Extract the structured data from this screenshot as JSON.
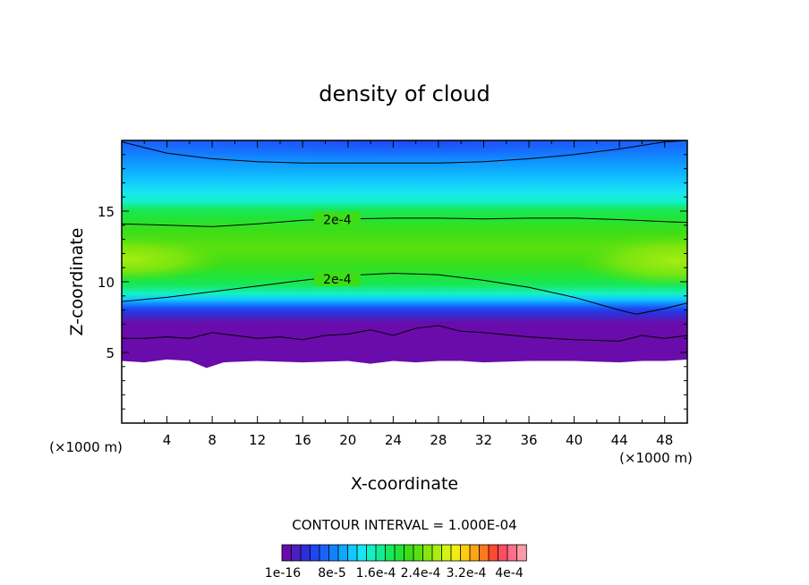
{
  "chart_data": {
    "type": "heatmap",
    "title": "density of cloud",
    "xlabel": "X-coordinate",
    "ylabel": "Z-coordinate",
    "x_unit_left": "(×1000 m)",
    "x_unit_right": "(×1000 m)",
    "xlim": [
      0,
      50
    ],
    "ylim": [
      0,
      20
    ],
    "x_ticks": [
      "4",
      "8",
      "12",
      "16",
      "20",
      "24",
      "28",
      "32",
      "36",
      "40",
      "44",
      "48"
    ],
    "y_ticks": [
      "5",
      "10",
      "15"
    ],
    "contour_interval_text": "CONTOUR INTERVAL = 1.000E-04",
    "contour_labels": [
      {
        "text": "2e-4",
        "x": 17,
        "z": 14.4
      },
      {
        "text": "2e-4",
        "x": 17,
        "z": 10.2
      }
    ],
    "contours_2e-4": [
      {
        "x": [
          0,
          4,
          8,
          12,
          16,
          20,
          24,
          28,
          32,
          36,
          40,
          44,
          48,
          50
        ],
        "z": [
          14.1,
          14.0,
          13.9,
          14.1,
          14.35,
          14.45,
          14.5,
          14.5,
          14.45,
          14.5,
          14.5,
          14.4,
          14.25,
          14.2
        ]
      },
      {
        "x": [
          0,
          4,
          8,
          12,
          16,
          20,
          24,
          28,
          32,
          36,
          40,
          44,
          45.5,
          48,
          50
        ],
        "z": [
          8.6,
          8.9,
          9.3,
          9.7,
          10.1,
          10.45,
          10.6,
          10.5,
          10.1,
          9.6,
          8.9,
          8.0,
          7.7,
          8.1,
          8.5
        ]
      }
    ],
    "contour_top": {
      "x": [
        0,
        4,
        8,
        12,
        16,
        20,
        24,
        28,
        32,
        36,
        40,
        44,
        48,
        50
      ],
      "z": [
        19.9,
        19.1,
        18.7,
        18.5,
        18.4,
        18.4,
        18.4,
        18.4,
        18.5,
        18.7,
        19.0,
        19.4,
        19.9,
        20.0
      ]
    },
    "cloud_base": {
      "x": [
        0,
        2,
        4,
        6,
        7.5,
        9,
        12,
        16,
        20,
        22,
        24,
        26,
        28,
        30,
        32,
        36,
        40,
        44,
        46,
        48,
        50
      ],
      "z": [
        4.4,
        4.3,
        4.5,
        4.4,
        3.9,
        4.3,
        4.4,
        4.3,
        4.4,
        4.2,
        4.4,
        4.3,
        4.4,
        4.4,
        4.3,
        4.4,
        4.4,
        4.3,
        4.4,
        4.4,
        4.5
      ]
    },
    "cloud_edge": {
      "x": [
        0,
        2,
        4,
        6,
        8,
        10,
        12,
        14,
        16,
        18,
        20,
        22,
        24,
        26,
        28,
        30,
        32,
        36,
        40,
        44,
        46,
        48,
        50
      ],
      "z": [
        6.0,
        6.0,
        6.1,
        6.0,
        6.4,
        6.2,
        6.0,
        6.1,
        5.9,
        6.2,
        6.3,
        6.6,
        6.2,
        6.7,
        6.9,
        6.5,
        6.4,
        6.1,
        5.9,
        5.8,
        6.2,
        6.0,
        6.2
      ]
    },
    "colorbar": {
      "labels": [
        "1e-16",
        "8e-5",
        "1.6e-4",
        "2.4e-4",
        "3.2e-4",
        "4e-4"
      ],
      "colors": [
        "#6a0bab",
        "#4b1fc0",
        "#2e2fd8",
        "#1f46f0",
        "#1a62ff",
        "#1283ff",
        "#0ea8ff",
        "#12c8ff",
        "#18e6f0",
        "#14f0c4",
        "#14ec94",
        "#18e85c",
        "#22e436",
        "#3cde18",
        "#5ae010",
        "#86e60e",
        "#aaee10",
        "#d2f412",
        "#f0ee10",
        "#ffcc10",
        "#ffa414",
        "#ff781e",
        "#ff4a30",
        "#ff4c5e",
        "#ff6e8a",
        "#ff9aa8"
      ]
    }
  }
}
